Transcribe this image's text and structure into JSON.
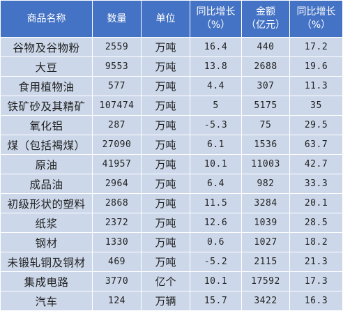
{
  "colors": {
    "header_bg": "#4472c4",
    "header_text": "#ffffff",
    "row_bg": "#ccd8ea",
    "row_text": "#1f1f1f",
    "grid_line": "#ffffff"
  },
  "headers": {
    "name": "商品名称",
    "quantity": "数量",
    "unit": "单位",
    "qty_growth": {
      "line1": "同比增长",
      "line2": "（%）"
    },
    "amount": {
      "line1": "金额",
      "line2": "（亿元）"
    },
    "amount_growth": {
      "line1": "同比增长",
      "line2": "（%）"
    }
  },
  "rows": [
    {
      "name": "谷物及谷物粉",
      "quantity": "2559",
      "unit": "万吨",
      "qty_growth": "16.4",
      "amount": "440",
      "amount_growth": "17.2"
    },
    {
      "name": "大豆",
      "quantity": "9553",
      "unit": "万吨",
      "qty_growth": "13.8",
      "amount": "2688",
      "amount_growth": "19.6"
    },
    {
      "name": "食用植物油",
      "quantity": "577",
      "unit": "万吨",
      "qty_growth": "4.4",
      "amount": "307",
      "amount_growth": "11.3"
    },
    {
      "name": "铁矿砂及其精矿",
      "quantity": "107474",
      "unit": "万吨",
      "qty_growth": "5",
      "amount": "5175",
      "amount_growth": "35"
    },
    {
      "name": "氧化铝",
      "quantity": "287",
      "unit": "万吨",
      "qty_growth": "-5.3",
      "amount": "75",
      "amount_growth": "29.5"
    },
    {
      "name": "煤（包括褐煤）",
      "quantity": "27090",
      "unit": "万吨",
      "qty_growth": "6.1",
      "amount": "1536",
      "amount_growth": "63.7"
    },
    {
      "name": "原油",
      "quantity": "41957",
      "unit": "万吨",
      "qty_growth": "10.1",
      "amount": "11003",
      "amount_growth": "42.7"
    },
    {
      "name": "成品油",
      "quantity": "2964",
      "unit": "万吨",
      "qty_growth": "6.4",
      "amount": "982",
      "amount_growth": "33.3"
    },
    {
      "name": "初级形状的塑料",
      "quantity": "2868",
      "unit": "万吨",
      "qty_growth": "11.5",
      "amount": "3284",
      "amount_growth": "20.1"
    },
    {
      "name": "纸浆",
      "quantity": "2372",
      "unit": "万吨",
      "qty_growth": "12.6",
      "amount": "1039",
      "amount_growth": "28.5"
    },
    {
      "name": "钢材",
      "quantity": "1330",
      "unit": "万吨",
      "qty_growth": "0.6",
      "amount": "1027",
      "amount_growth": "18.2"
    },
    {
      "name": "未锻轧铜及铜材",
      "quantity": "469",
      "unit": "万吨",
      "qty_growth": "-5.2",
      "amount": "2115",
      "amount_growth": "21.3"
    },
    {
      "name": "集成电路",
      "quantity": "3770",
      "unit": "亿个",
      "qty_growth": "10.1",
      "amount": "17592",
      "amount_growth": "17.3"
    },
    {
      "name": "汽车",
      "quantity": "124",
      "unit": "万辆",
      "qty_growth": "15.7",
      "amount": "3422",
      "amount_growth": "16.3"
    }
  ]
}
